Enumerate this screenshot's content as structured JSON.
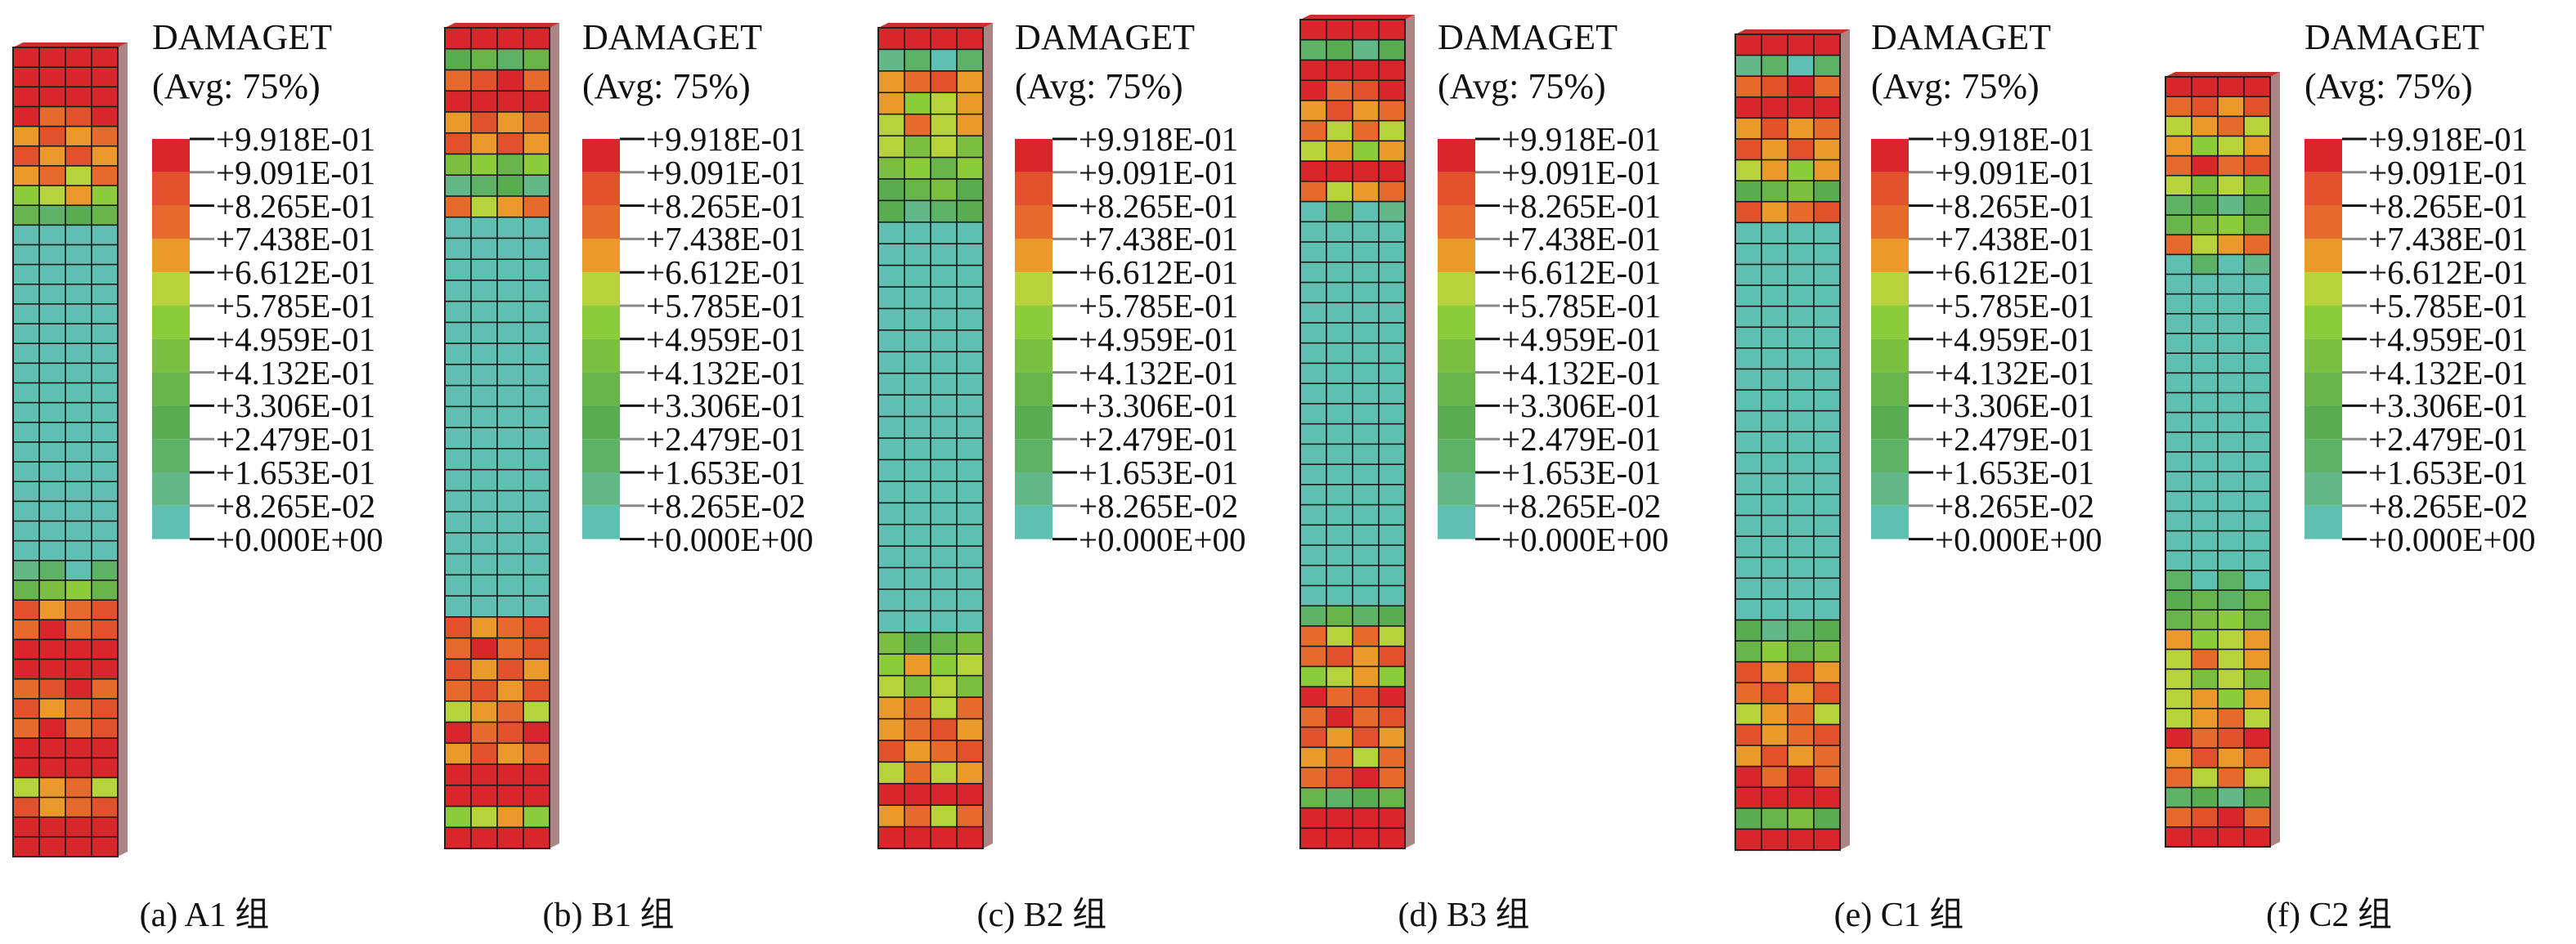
{
  "legend": {
    "title": "DAMAGET",
    "subtitle": "(Avg: 75%)",
    "labels": [
      "+9.918E-01",
      "+9.091E-01",
      "+8.265E-01",
      "+7.438E-01",
      "+6.612E-01",
      "+5.785E-01",
      "+4.959E-01",
      "+4.132E-01",
      "+3.306E-01",
      "+2.479E-01",
      "+1.653E-01",
      "+8.265E-02",
      "+0.000E+00"
    ],
    "colors": [
      "#d8262a",
      "#e0512c",
      "#e66a2c",
      "#e99a2a",
      "#b7d33b",
      "#8ccc3b",
      "#7cbe3f",
      "#66b44a",
      "#57ad50",
      "#5db266",
      "#63b88a",
      "#5fbfb1"
    ]
  },
  "colors": {
    "mesh_line": "#1a1a1a",
    "side_shade": "#000000"
  },
  "panels": [
    {
      "id": "A1",
      "caption": "(a) A1 组",
      "damage_rows": [
        0,
        0,
        0,
        1,
        2,
        2,
        3,
        4,
        8,
        11,
        11,
        11,
        11,
        11,
        11,
        11,
        11,
        11,
        11,
        11,
        11,
        11,
        11,
        11,
        11,
        11,
        10,
        6,
        2,
        1,
        0,
        0,
        1,
        2,
        1,
        0,
        0,
        3,
        2,
        0,
        0
      ]
    },
    {
      "id": "B1",
      "caption": "(b) B1 组",
      "damage_rows": [
        0,
        8,
        1,
        0,
        2,
        2,
        6,
        9,
        3,
        11,
        11,
        11,
        11,
        11,
        11,
        11,
        11,
        11,
        11,
        11,
        11,
        11,
        11,
        11,
        11,
        11,
        11,
        11,
        2,
        1,
        2,
        2,
        3,
        1,
        2,
        0,
        0,
        4,
        0
      ]
    },
    {
      "id": "B2",
      "caption": "(c) B2 组",
      "damage_rows": [
        0,
        10,
        2,
        4,
        3,
        5,
        6,
        7,
        9,
        11,
        11,
        11,
        11,
        11,
        11,
        11,
        11,
        11,
        11,
        11,
        11,
        11,
        11,
        11,
        11,
        11,
        11,
        11,
        7,
        4,
        5,
        3,
        2,
        2,
        3,
        0,
        3,
        0
      ]
    },
    {
      "id": "B3",
      "caption": "(d) B3 组",
      "damage_rows": [
        0,
        9,
        0,
        1,
        2,
        3,
        4,
        0,
        3,
        10,
        11,
        11,
        11,
        11,
        11,
        11,
        11,
        11,
        11,
        11,
        11,
        11,
        11,
        11,
        11,
        11,
        11,
        11,
        11,
        8,
        3,
        2,
        4,
        1,
        1,
        2,
        3,
        1,
        8,
        0,
        0
      ]
    },
    {
      "id": "C1",
      "caption": "(e) C1 组",
      "damage_rows": [
        0,
        10,
        1,
        0,
        2,
        2,
        4,
        7,
        2,
        11,
        11,
        11,
        11,
        11,
        11,
        11,
        11,
        11,
        11,
        11,
        11,
        11,
        11,
        11,
        11,
        11,
        11,
        11,
        9,
        6,
        2,
        2,
        3,
        2,
        2,
        1,
        0,
        7,
        0
      ]
    },
    {
      "id": "C2",
      "caption": "(f) C2 组",
      "damage_rows": [
        0,
        2,
        3,
        4,
        1,
        5,
        9,
        6,
        3,
        10,
        11,
        11,
        11,
        11,
        11,
        11,
        11,
        11,
        11,
        11,
        11,
        11,
        11,
        11,
        11,
        10,
        8,
        6,
        4,
        3,
        5,
        4,
        3,
        1,
        2,
        3,
        9,
        1,
        0
      ]
    }
  ]
}
